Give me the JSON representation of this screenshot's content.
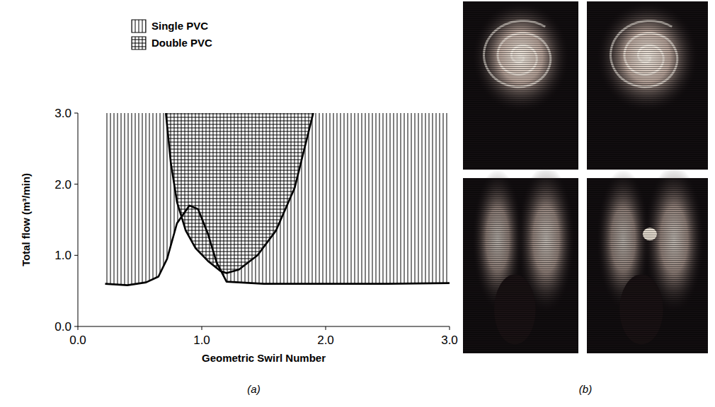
{
  "chart_data": {
    "type": "area",
    "xlabel": "Geometric Swirl Number",
    "ylabel": "Total flow (m³/min)",
    "xlim": [
      0,
      3
    ],
    "ylim": [
      0,
      3
    ],
    "xticks": [
      {
        "value": 0,
        "label": "0.0"
      },
      {
        "value": 1,
        "label": "1.0"
      },
      {
        "value": 2,
        "label": "2.0"
      },
      {
        "value": 3,
        "label": "3.0"
      }
    ],
    "yticks": [
      {
        "value": 0,
        "label": "0.0"
      },
      {
        "value": 1,
        "label": "1.0"
      },
      {
        "value": 2,
        "label": "2.0"
      },
      {
        "value": 3,
        "label": "3.0"
      }
    ],
    "grid": false,
    "legend": "top",
    "series": [
      {
        "name": "Single PVC",
        "color": "#000000",
        "x": [
          0.22,
          0.4,
          0.55,
          0.65,
          0.72,
          0.8,
          0.9,
          0.97,
          1.05,
          1.12,
          1.2,
          1.5,
          2.0,
          2.5,
          3.0
        ],
        "values": [
          0.6,
          0.58,
          0.62,
          0.7,
          0.95,
          1.45,
          1.7,
          1.65,
          1.3,
          0.9,
          0.63,
          0.6,
          0.6,
          0.6,
          0.61
        ]
      },
      {
        "name": "Double PVC",
        "color": "#000000",
        "x": [
          0.71,
          0.75,
          0.8,
          0.87,
          0.95,
          1.05,
          1.15,
          1.2,
          1.3,
          1.45,
          1.6,
          1.75,
          1.9
        ],
        "values": [
          3.0,
          2.3,
          1.75,
          1.35,
          1.1,
          0.92,
          0.78,
          0.75,
          0.8,
          1.0,
          1.35,
          1.95,
          3.0
        ]
      }
    ]
  },
  "panel_labels": [
    "(a)",
    "(b)"
  ]
}
